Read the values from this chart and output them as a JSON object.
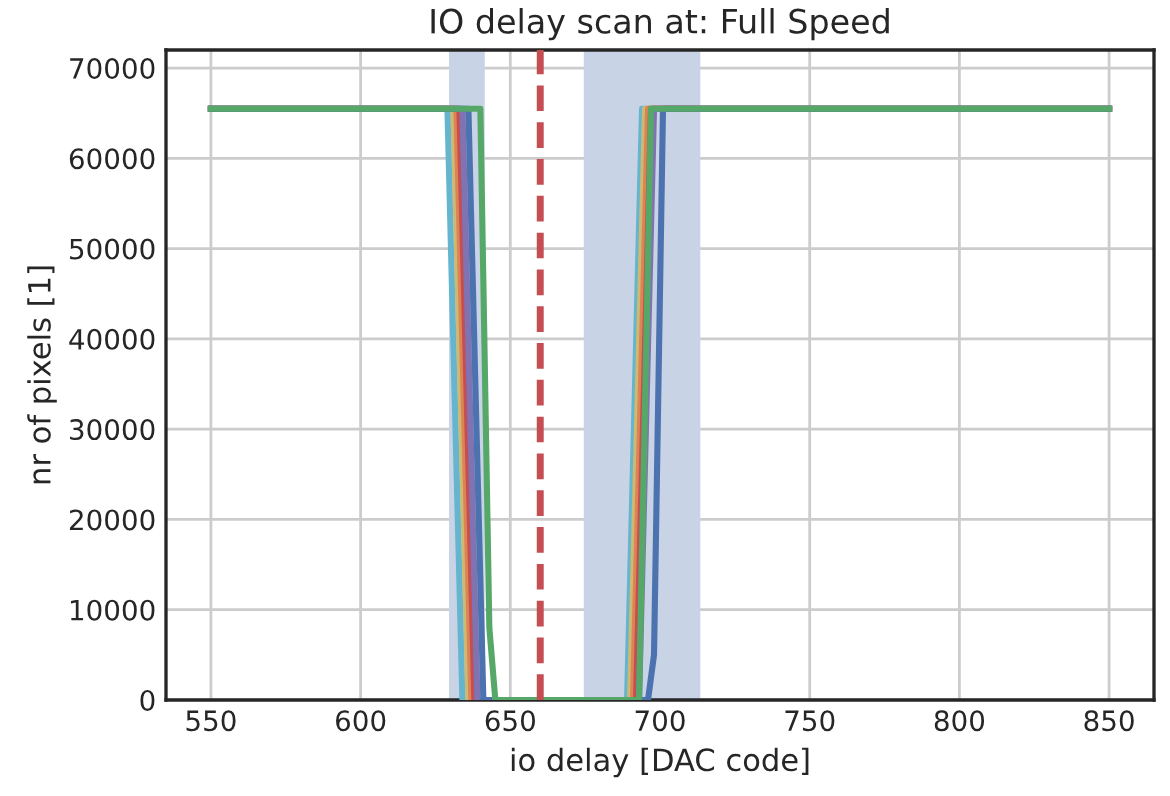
{
  "chart_data": {
    "type": "line",
    "title": "IO delay scan at: Full Speed",
    "xlabel": "io delay [DAC code]",
    "ylabel": "nr of pixels [1]",
    "xlim": [
      535,
      865
    ],
    "ylim": [
      0,
      72000
    ],
    "xticks": [
      550,
      600,
      650,
      700,
      750,
      800,
      850
    ],
    "yticks": [
      0,
      10000,
      20000,
      30000,
      40000,
      50000,
      60000,
      70000
    ],
    "grid": true,
    "legend": false,
    "marker": "none",
    "line_style": "solid",
    "series": [
      {
        "color": "#64b5cd",
        "x": [
          550,
          629,
          634,
          689,
          694,
          850
        ],
        "values": [
          65500,
          65500,
          0,
          0,
          65500,
          65500
        ]
      },
      {
        "color": "#ccb974",
        "x": [
          550,
          631,
          636,
          690,
          695,
          850
        ],
        "values": [
          65500,
          65500,
          0,
          0,
          65500,
          65500
        ]
      },
      {
        "color": "#dd8452",
        "x": [
          550,
          632,
          637,
          691,
          696,
          850
        ],
        "values": [
          65500,
          65500,
          0,
          0,
          65500,
          65500
        ]
      },
      {
        "color": "#c44e52",
        "x": [
          550,
          633,
          638,
          692,
          697,
          850
        ],
        "values": [
          65500,
          65500,
          0,
          0,
          65500,
          65500
        ]
      },
      {
        "color": "#8172b2",
        "x": [
          550,
          634,
          639,
          693,
          698,
          850
        ],
        "values": [
          65500,
          65500,
          0,
          0,
          65500,
          65500
        ]
      },
      {
        "color": "#4c72b0",
        "x": [
          550,
          636,
          641,
          696,
          698,
          701,
          850
        ],
        "values": [
          65500,
          65500,
          0,
          0,
          5000,
          65500,
          65500
        ]
      },
      {
        "color": "#55a868",
        "x": [
          550,
          640,
          643,
          645,
          693,
          697,
          850
        ],
        "values": [
          65500,
          65500,
          8000,
          0,
          0,
          65500,
          65500
        ]
      }
    ],
    "bands": [
      {
        "axis": "x",
        "from": 630,
        "to": 641,
        "color": "#c8d3e6"
      },
      {
        "axis": "x",
        "from": 675,
        "to": 713,
        "color": "#c8d3e6"
      }
    ],
    "ref_lines": [
      {
        "axis": "x",
        "value": 660,
        "color": "#c44e52",
        "line_style": "dashed"
      }
    ]
  }
}
